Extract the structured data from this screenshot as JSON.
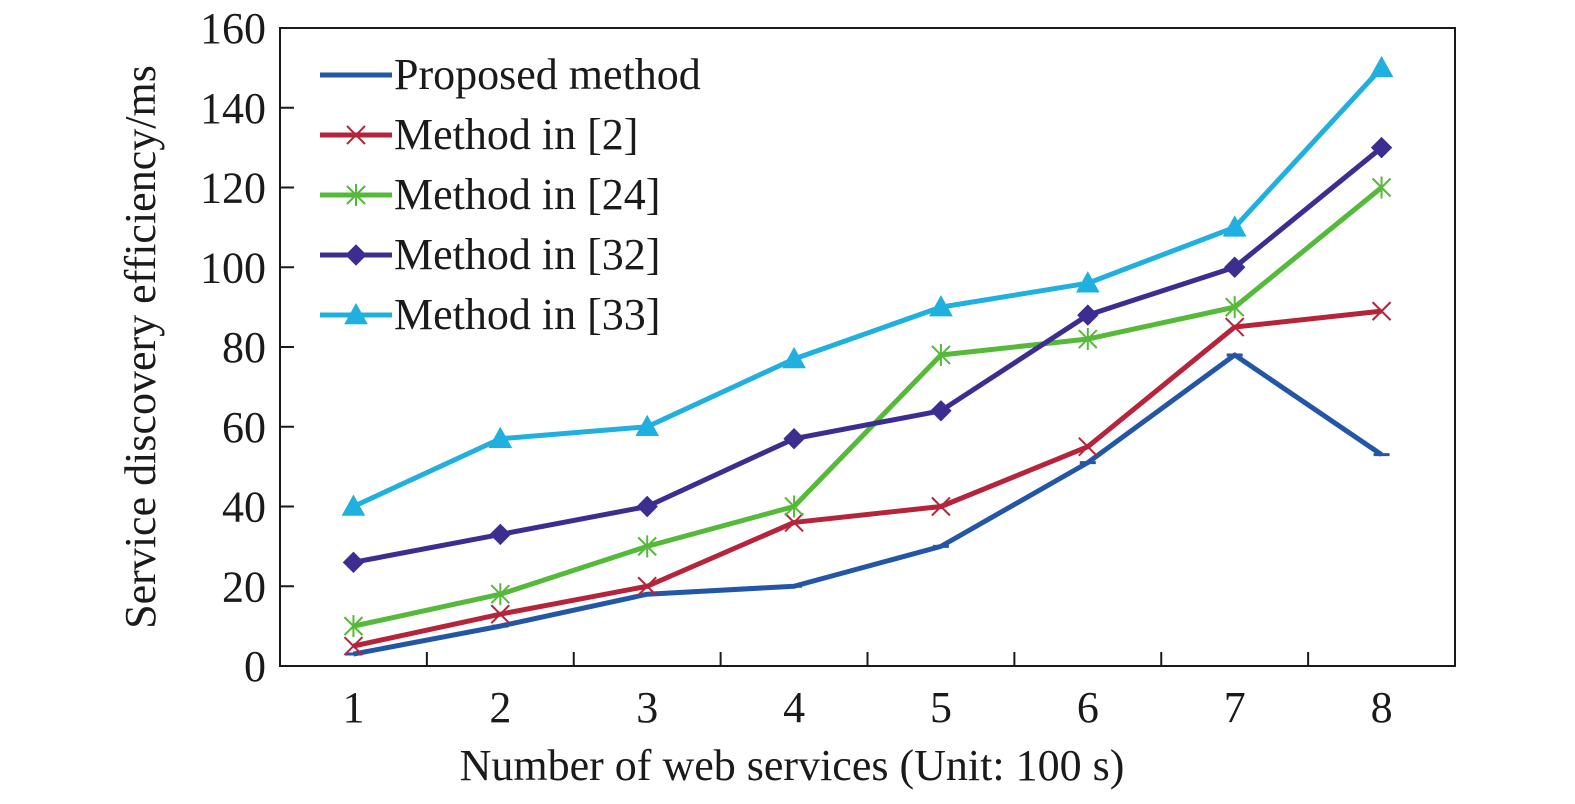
{
  "chart_data": {
    "type": "line",
    "xlabel": "Number of web services (Unit: 100 s)",
    "ylabel": "Service discovery efficiency/ms",
    "x": [
      1,
      2,
      3,
      4,
      5,
      6,
      7,
      8
    ],
    "xlim": [
      0.5,
      8.5
    ],
    "ylim": [
      0,
      160
    ],
    "yticks": [
      0,
      20,
      40,
      60,
      80,
      100,
      120,
      140,
      160
    ],
    "grid": false,
    "legend_position": "top-left",
    "series": [
      {
        "name": "Proposed method",
        "color": "#2356a6",
        "marker": "none",
        "values": [
          3,
          10,
          18,
          20,
          30,
          51,
          78,
          53
        ]
      },
      {
        "name": "Method in [2]",
        "color": "#b5243a",
        "marker": "x",
        "values": [
          5,
          13,
          20,
          36,
          40,
          55,
          85,
          89
        ]
      },
      {
        "name": "Method in [24]",
        "color": "#55b93a",
        "marker": "asterisk",
        "values": [
          10,
          18,
          30,
          40,
          78,
          82,
          90,
          120
        ]
      },
      {
        "name": "Method in [32]",
        "color": "#3c2e91",
        "marker": "diamond",
        "values": [
          26,
          33,
          40,
          57,
          64,
          88,
          100,
          130
        ]
      },
      {
        "name": "Method in [33]",
        "color": "#1fb0df",
        "marker": "triangle",
        "values": [
          40,
          57,
          60,
          77,
          90,
          96,
          110,
          150
        ]
      }
    ]
  }
}
